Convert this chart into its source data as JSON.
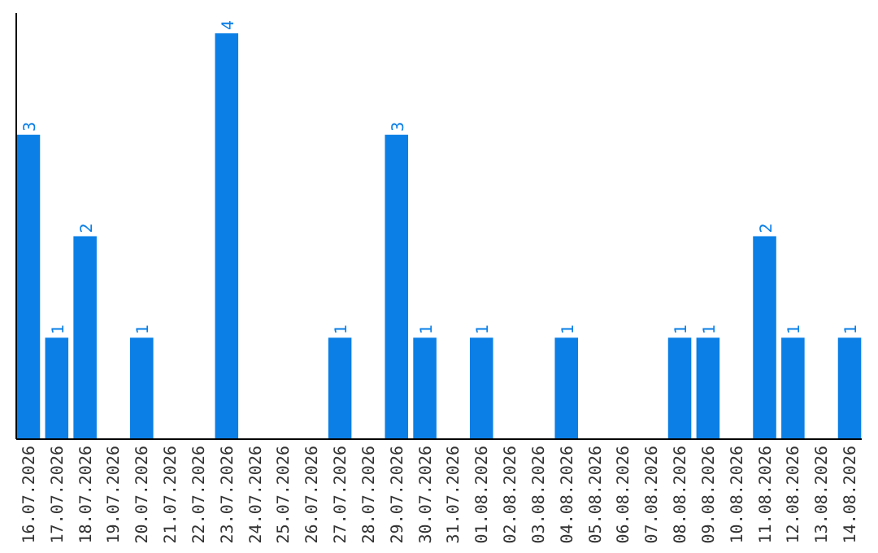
{
  "chart_data": {
    "type": "bar",
    "categories": [
      "16.07.2026",
      "17.07.2026",
      "18.07.2026",
      "19.07.2026",
      "20.07.2026",
      "21.07.2026",
      "22.07.2026",
      "23.07.2026",
      "24.07.2026",
      "25.07.2026",
      "26.07.2026",
      "27.07.2026",
      "28.07.2026",
      "29.07.2026",
      "30.07.2026",
      "31.07.2026",
      "01.08.2026",
      "02.08.2026",
      "03.08.2026",
      "04.08.2026",
      "05.08.2026",
      "06.08.2026",
      "07.08.2026",
      "08.08.2026",
      "09.08.2026",
      "10.08.2026",
      "11.08.2026",
      "12.08.2026",
      "13.08.2026",
      "14.08.2026"
    ],
    "values": [
      3,
      1,
      2,
      null,
      1,
      null,
      null,
      4,
      null,
      null,
      null,
      1,
      null,
      3,
      1,
      null,
      1,
      null,
      null,
      1,
      null,
      null,
      null,
      1,
      1,
      null,
      2,
      1,
      null,
      1
    ],
    "color": "#0b7fe6",
    "ylim": [
      0,
      4.2
    ],
    "data_labels": true,
    "tick_labels": "x"
  }
}
